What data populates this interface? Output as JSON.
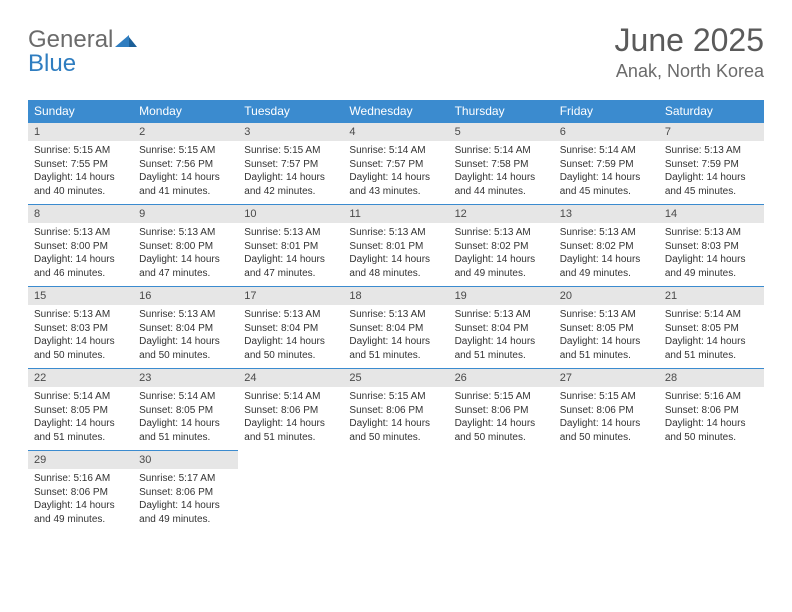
{
  "logo": {
    "text_gray": "General",
    "text_blue": "Blue"
  },
  "title": "June 2025",
  "location": "Anak, North Korea",
  "colors": {
    "header_bg": "#3b8bcf",
    "header_text": "#ffffff",
    "daynum_bg": "#e6e6e6",
    "daynum_text": "#4a4a4a",
    "body_text": "#333333",
    "rule": "#3b8bcf",
    "logo_gray": "#6b6b6b",
    "logo_blue": "#2f7dc0",
    "title_color": "#5a5a5a",
    "page_bg": "#ffffff"
  },
  "typography": {
    "title_fontsize": 32,
    "location_fontsize": 18,
    "header_fontsize": 12,
    "daynum_fontsize": 11,
    "body_fontsize": 10
  },
  "weekdays": [
    "Sunday",
    "Monday",
    "Tuesday",
    "Wednesday",
    "Thursday",
    "Friday",
    "Saturday"
  ],
  "days": [
    {
      "n": 1,
      "sunrise": "5:15 AM",
      "sunset": "7:55 PM",
      "daylight": "14 hours and 40 minutes."
    },
    {
      "n": 2,
      "sunrise": "5:15 AM",
      "sunset": "7:56 PM",
      "daylight": "14 hours and 41 minutes."
    },
    {
      "n": 3,
      "sunrise": "5:15 AM",
      "sunset": "7:57 PM",
      "daylight": "14 hours and 42 minutes."
    },
    {
      "n": 4,
      "sunrise": "5:14 AM",
      "sunset": "7:57 PM",
      "daylight": "14 hours and 43 minutes."
    },
    {
      "n": 5,
      "sunrise": "5:14 AM",
      "sunset": "7:58 PM",
      "daylight": "14 hours and 44 minutes."
    },
    {
      "n": 6,
      "sunrise": "5:14 AM",
      "sunset": "7:59 PM",
      "daylight": "14 hours and 45 minutes."
    },
    {
      "n": 7,
      "sunrise": "5:13 AM",
      "sunset": "7:59 PM",
      "daylight": "14 hours and 45 minutes."
    },
    {
      "n": 8,
      "sunrise": "5:13 AM",
      "sunset": "8:00 PM",
      "daylight": "14 hours and 46 minutes."
    },
    {
      "n": 9,
      "sunrise": "5:13 AM",
      "sunset": "8:00 PM",
      "daylight": "14 hours and 47 minutes."
    },
    {
      "n": 10,
      "sunrise": "5:13 AM",
      "sunset": "8:01 PM",
      "daylight": "14 hours and 47 minutes."
    },
    {
      "n": 11,
      "sunrise": "5:13 AM",
      "sunset": "8:01 PM",
      "daylight": "14 hours and 48 minutes."
    },
    {
      "n": 12,
      "sunrise": "5:13 AM",
      "sunset": "8:02 PM",
      "daylight": "14 hours and 49 minutes."
    },
    {
      "n": 13,
      "sunrise": "5:13 AM",
      "sunset": "8:02 PM",
      "daylight": "14 hours and 49 minutes."
    },
    {
      "n": 14,
      "sunrise": "5:13 AM",
      "sunset": "8:03 PM",
      "daylight": "14 hours and 49 minutes."
    },
    {
      "n": 15,
      "sunrise": "5:13 AM",
      "sunset": "8:03 PM",
      "daylight": "14 hours and 50 minutes."
    },
    {
      "n": 16,
      "sunrise": "5:13 AM",
      "sunset": "8:04 PM",
      "daylight": "14 hours and 50 minutes."
    },
    {
      "n": 17,
      "sunrise": "5:13 AM",
      "sunset": "8:04 PM",
      "daylight": "14 hours and 50 minutes."
    },
    {
      "n": 18,
      "sunrise": "5:13 AM",
      "sunset": "8:04 PM",
      "daylight": "14 hours and 51 minutes."
    },
    {
      "n": 19,
      "sunrise": "5:13 AM",
      "sunset": "8:04 PM",
      "daylight": "14 hours and 51 minutes."
    },
    {
      "n": 20,
      "sunrise": "5:13 AM",
      "sunset": "8:05 PM",
      "daylight": "14 hours and 51 minutes."
    },
    {
      "n": 21,
      "sunrise": "5:14 AM",
      "sunset": "8:05 PM",
      "daylight": "14 hours and 51 minutes."
    },
    {
      "n": 22,
      "sunrise": "5:14 AM",
      "sunset": "8:05 PM",
      "daylight": "14 hours and 51 minutes."
    },
    {
      "n": 23,
      "sunrise": "5:14 AM",
      "sunset": "8:05 PM",
      "daylight": "14 hours and 51 minutes."
    },
    {
      "n": 24,
      "sunrise": "5:14 AM",
      "sunset": "8:06 PM",
      "daylight": "14 hours and 51 minutes."
    },
    {
      "n": 25,
      "sunrise": "5:15 AM",
      "sunset": "8:06 PM",
      "daylight": "14 hours and 50 minutes."
    },
    {
      "n": 26,
      "sunrise": "5:15 AM",
      "sunset": "8:06 PM",
      "daylight": "14 hours and 50 minutes."
    },
    {
      "n": 27,
      "sunrise": "5:15 AM",
      "sunset": "8:06 PM",
      "daylight": "14 hours and 50 minutes."
    },
    {
      "n": 28,
      "sunrise": "5:16 AM",
      "sunset": "8:06 PM",
      "daylight": "14 hours and 50 minutes."
    },
    {
      "n": 29,
      "sunrise": "5:16 AM",
      "sunset": "8:06 PM",
      "daylight": "14 hours and 49 minutes."
    },
    {
      "n": 30,
      "sunrise": "5:17 AM",
      "sunset": "8:06 PM",
      "daylight": "14 hours and 49 minutes."
    }
  ],
  "labels": {
    "sunrise_prefix": "Sunrise: ",
    "sunset_prefix": "Sunset: ",
    "daylight_prefix": "Daylight: "
  },
  "layout": {
    "first_weekday_index": 0,
    "weeks": 5,
    "cols": 7
  }
}
